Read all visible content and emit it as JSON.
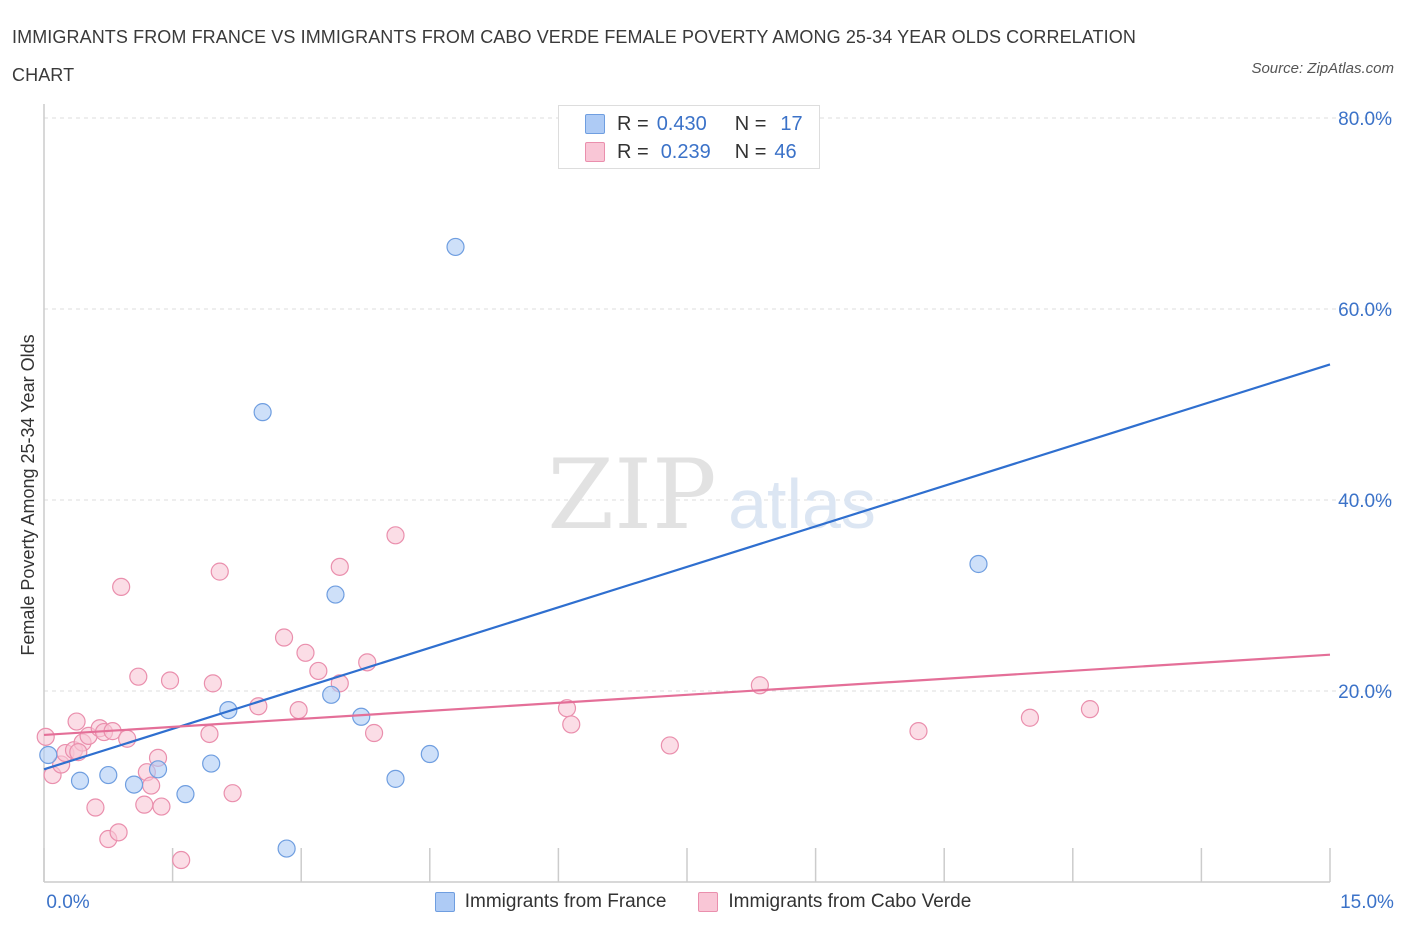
{
  "title": "IMMIGRANTS FROM FRANCE VS IMMIGRANTS FROM CABO VERDE FEMALE POVERTY AMONG 25-34 YEAR OLDS CORRELATION CHART",
  "source": "Source: ZipAtlas.com",
  "watermark": {
    "zip": "ZIP",
    "atlas": "atlas"
  },
  "legend": {
    "rows": [
      {
        "r_label": "R =",
        "r_value": "0.430",
        "n_label": "N =",
        "n_value": "17",
        "color": "#aecbf5",
        "border": "#6f9ee0"
      },
      {
        "r_label": "R =",
        "r_value": "0.239",
        "n_label": "N =",
        "n_value": "46",
        "color": "#f9c6d6",
        "border": "#ea8fad"
      }
    ]
  },
  "bottom_legend": [
    {
      "label": "Immigrants from France",
      "color": "#aecbf5",
      "border": "#6f9ee0"
    },
    {
      "label": "Immigrants from Cabo Verde",
      "color": "#f9c6d6",
      "border": "#ea8fad"
    }
  ],
  "chart_data": {
    "type": "scatter",
    "title": "IMMIGRANTS FROM FRANCE VS IMMIGRANTS FROM CABO VERDE FEMALE POVERTY AMONG 25-34 YEAR OLDS CORRELATION CHART",
    "xlabel": "",
    "ylabel": "Female Poverty Among 25-34 Year Olds",
    "xlim": [
      0,
      15
    ],
    "ylim": [
      0,
      80
    ],
    "x_tick_labels": {
      "min": "0.0%",
      "max": "15.0%"
    },
    "y_ticks": [
      {
        "value": 20,
        "label": "20.0%"
      },
      {
        "value": 40,
        "label": "40.0%"
      },
      {
        "value": 60,
        "label": "60.0%"
      },
      {
        "value": 80,
        "label": "80.0%"
      }
    ],
    "series": [
      {
        "name": "Immigrants from France",
        "color": "#aecbf5",
        "border": "#6f9ee0",
        "line_color": "#2f6fcf",
        "trend": {
          "x0": 0,
          "y0": 11.8,
          "x1": 15,
          "y1": 54.2
        },
        "points": [
          [
            0.05,
            13.3
          ],
          [
            0.42,
            10.6
          ],
          [
            0.75,
            11.2
          ],
          [
            1.05,
            10.2
          ],
          [
            1.33,
            11.8
          ],
          [
            1.65,
            9.2
          ],
          [
            1.95,
            12.4
          ],
          [
            2.15,
            18.0
          ],
          [
            2.55,
            49.2
          ],
          [
            2.83,
            3.5
          ],
          [
            3.35,
            19.6
          ],
          [
            3.4,
            30.1
          ],
          [
            3.7,
            17.3
          ],
          [
            4.1,
            10.8
          ],
          [
            4.5,
            13.4
          ],
          [
            4.8,
            66.5
          ],
          [
            10.9,
            33.3
          ]
        ]
      },
      {
        "name": "Immigrants from Cabo Verde",
        "color": "#f9c6d6",
        "border": "#ea8fad",
        "line_color": "#e46f98",
        "trend": {
          "x0": 0,
          "y0": 15.4,
          "x1": 15,
          "y1": 23.8
        },
        "points": [
          [
            0.02,
            15.2
          ],
          [
            0.1,
            11.2
          ],
          [
            0.2,
            12.3
          ],
          [
            0.25,
            13.5
          ],
          [
            0.35,
            13.8
          ],
          [
            0.38,
            16.8
          ],
          [
            0.45,
            14.6
          ],
          [
            0.52,
            15.3
          ],
          [
            0.6,
            7.8
          ],
          [
            0.65,
            16.1
          ],
          [
            0.7,
            15.7
          ],
          [
            0.75,
            4.5
          ],
          [
            0.8,
            15.8
          ],
          [
            0.87,
            5.2
          ],
          [
            0.9,
            30.9
          ],
          [
            0.97,
            15.0
          ],
          [
            1.1,
            21.5
          ],
          [
            1.17,
            8.1
          ],
          [
            1.2,
            11.5
          ],
          [
            1.25,
            10.1
          ],
          [
            1.33,
            13.0
          ],
          [
            1.37,
            7.9
          ],
          [
            1.47,
            21.1
          ],
          [
            1.6,
            2.3
          ],
          [
            1.93,
            15.5
          ],
          [
            1.97,
            20.8
          ],
          [
            2.05,
            32.5
          ],
          [
            2.2,
            9.3
          ],
          [
            2.5,
            18.4
          ],
          [
            2.8,
            25.6
          ],
          [
            2.97,
            18.0
          ],
          [
            3.05,
            24.0
          ],
          [
            3.2,
            22.1
          ],
          [
            3.45,
            20.8
          ],
          [
            3.45,
            33.0
          ],
          [
            3.77,
            23.0
          ],
          [
            3.85,
            15.6
          ],
          [
            4.1,
            36.3
          ],
          [
            6.1,
            18.2
          ],
          [
            6.15,
            16.5
          ],
          [
            7.3,
            14.3
          ],
          [
            8.35,
            20.6
          ],
          [
            10.2,
            15.8
          ],
          [
            11.5,
            17.2
          ],
          [
            12.2,
            18.1
          ],
          [
            0.4,
            13.6
          ]
        ]
      }
    ]
  }
}
